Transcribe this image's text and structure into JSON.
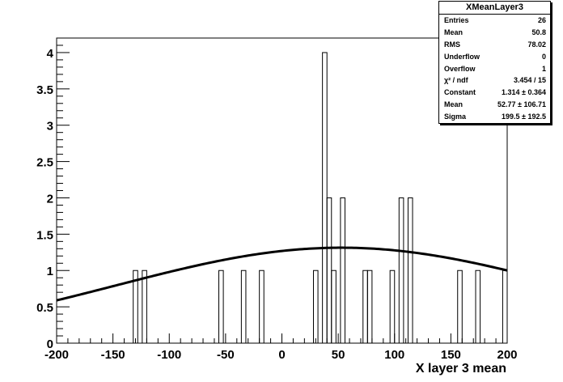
{
  "chart_data": {
    "type": "histogram",
    "title": "",
    "xlabel": "X layer 3 mean",
    "ylabel": "",
    "xlim": [
      -200,
      200
    ],
    "ylim": [
      0,
      4.2
    ],
    "x_ticks": [
      -200,
      -150,
      -100,
      -50,
      0,
      50,
      100,
      150,
      200
    ],
    "x_tick_labels": [
      "-200",
      "-150",
      "-100",
      "-50",
      "0",
      "50",
      "100",
      "150",
      "200"
    ],
    "y_ticks": [
      0,
      0.5,
      1,
      1.5,
      2,
      2.5,
      3,
      3.5,
      4
    ],
    "y_tick_labels": [
      "0",
      "0.5",
      "1",
      "1.5",
      "2",
      "2.5",
      "3",
      "3.5",
      "4"
    ],
    "bin_edges": [
      -200,
      200
    ],
    "n_bins": 100,
    "bins": [
      {
        "x0": -132,
        "x1": -128,
        "count": 1
      },
      {
        "x0": -124,
        "x1": -120,
        "count": 1
      },
      {
        "x0": -56,
        "x1": -52,
        "count": 1
      },
      {
        "x0": -36,
        "x1": -32,
        "count": 1
      },
      {
        "x0": -20,
        "x1": -16,
        "count": 1
      },
      {
        "x0": 28,
        "x1": 32,
        "count": 1
      },
      {
        "x0": 36,
        "x1": 40,
        "count": 4
      },
      {
        "x0": 40,
        "x1": 44,
        "count": 2
      },
      {
        "x0": 44,
        "x1": 48,
        "count": 1
      },
      {
        "x0": 52,
        "x1": 56,
        "count": 2
      },
      {
        "x0": 72,
        "x1": 76,
        "count": 1
      },
      {
        "x0": 76,
        "x1": 80,
        "count": 1
      },
      {
        "x0": 96,
        "x1": 100,
        "count": 1
      },
      {
        "x0": 104,
        "x1": 108,
        "count": 2
      },
      {
        "x0": 112,
        "x1": 116,
        "count": 2
      },
      {
        "x0": 156,
        "x1": 160,
        "count": 1
      },
      {
        "x0": 172,
        "x1": 176,
        "count": 1
      },
      {
        "x0": 196,
        "x1": 200,
        "count": 1
      }
    ],
    "fit": {
      "type": "gaussian",
      "constant": 1.314,
      "mean": 52.77,
      "sigma": 199.5
    },
    "grid": false,
    "legend": "top-right stats box"
  },
  "stats": {
    "title": "XMeanLayer3",
    "rows": [
      {
        "label": "Entries",
        "value": "26"
      },
      {
        "label": "Mean",
        "value": "50.8"
      },
      {
        "label": "RMS",
        "value": "78.02"
      },
      {
        "label": "Underflow",
        "value": "0"
      },
      {
        "label": "Overflow",
        "value": "1"
      },
      {
        "label": "χ² / ndf",
        "value": "3.454 / 15"
      },
      {
        "label": "Constant",
        "value": "1.314 ± 0.364"
      },
      {
        "label": "Mean",
        "value": "52.77 ± 106.71"
      },
      {
        "label": "Sigma",
        "value": "199.5 ± 192.5"
      }
    ]
  }
}
